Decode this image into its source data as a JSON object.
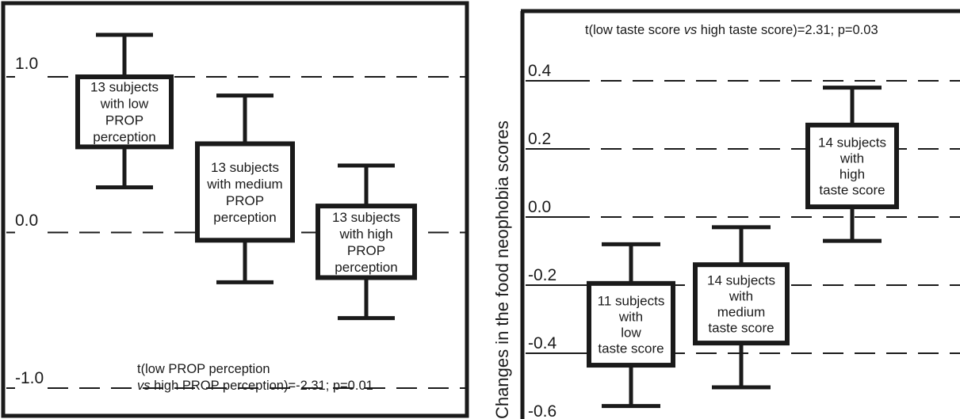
{
  "chart_data": [
    {
      "type": "box",
      "ylim": [
        -1.0,
        1.0
      ],
      "ticks": [
        "1.0",
        "0.0",
        "-1.0"
      ],
      "gridlines": "dashed",
      "annotation": {
        "line1": "t(low PROP perception",
        "line2_italic": "vs",
        "line2_rest": " high PROP perception)=-2.31; p=0.01"
      },
      "groups": [
        {
          "label_lines": [
            "13 subjects",
            "with low",
            "PROP",
            "perception"
          ],
          "whisker_high": 1.27,
          "box_high": 1.0,
          "box_low": 0.55,
          "whisker_low": 0.29
        },
        {
          "label_lines": [
            "13 subjects",
            "with medium",
            "PROP",
            "perception"
          ],
          "whisker_high": 0.88,
          "box_high": 0.57,
          "box_low": -0.05,
          "whisker_low": -0.32
        },
        {
          "label_lines": [
            "13 subjects",
            "with high",
            "PROP",
            "perception"
          ],
          "whisker_high": 0.43,
          "box_high": 0.17,
          "box_low": -0.29,
          "whisker_low": -0.55
        }
      ]
    },
    {
      "type": "box",
      "ylabel": "Changes in the food neophobia scores",
      "ylim": [
        -0.6,
        0.4
      ],
      "ticks": [
        "0.4",
        "0.2",
        "0.0",
        "-0.2",
        "-0.4",
        "-0.6"
      ],
      "gridlines": "dashed",
      "annotation": {
        "pre": "t(low taste score ",
        "italic": "vs",
        "post": " high taste score)=2.31; p=0.03"
      },
      "groups": [
        {
          "label_lines": [
            "11 subjects",
            "with",
            "low",
            "taste score"
          ],
          "whisker_high": -0.08,
          "box_high": -0.195,
          "box_low": -0.435,
          "whisker_low": -0.555
        },
        {
          "label_lines": [
            "14 subjects",
            "with",
            "medium",
            "taste score"
          ],
          "whisker_high": -0.03,
          "box_high": -0.14,
          "box_low": -0.37,
          "whisker_low": -0.5
        },
        {
          "label_lines": [
            "14 subjects",
            "with",
            "high",
            "taste score"
          ],
          "whisker_high": 0.38,
          "box_high": 0.27,
          "box_low": 0.03,
          "whisker_low": -0.07
        }
      ]
    }
  ]
}
